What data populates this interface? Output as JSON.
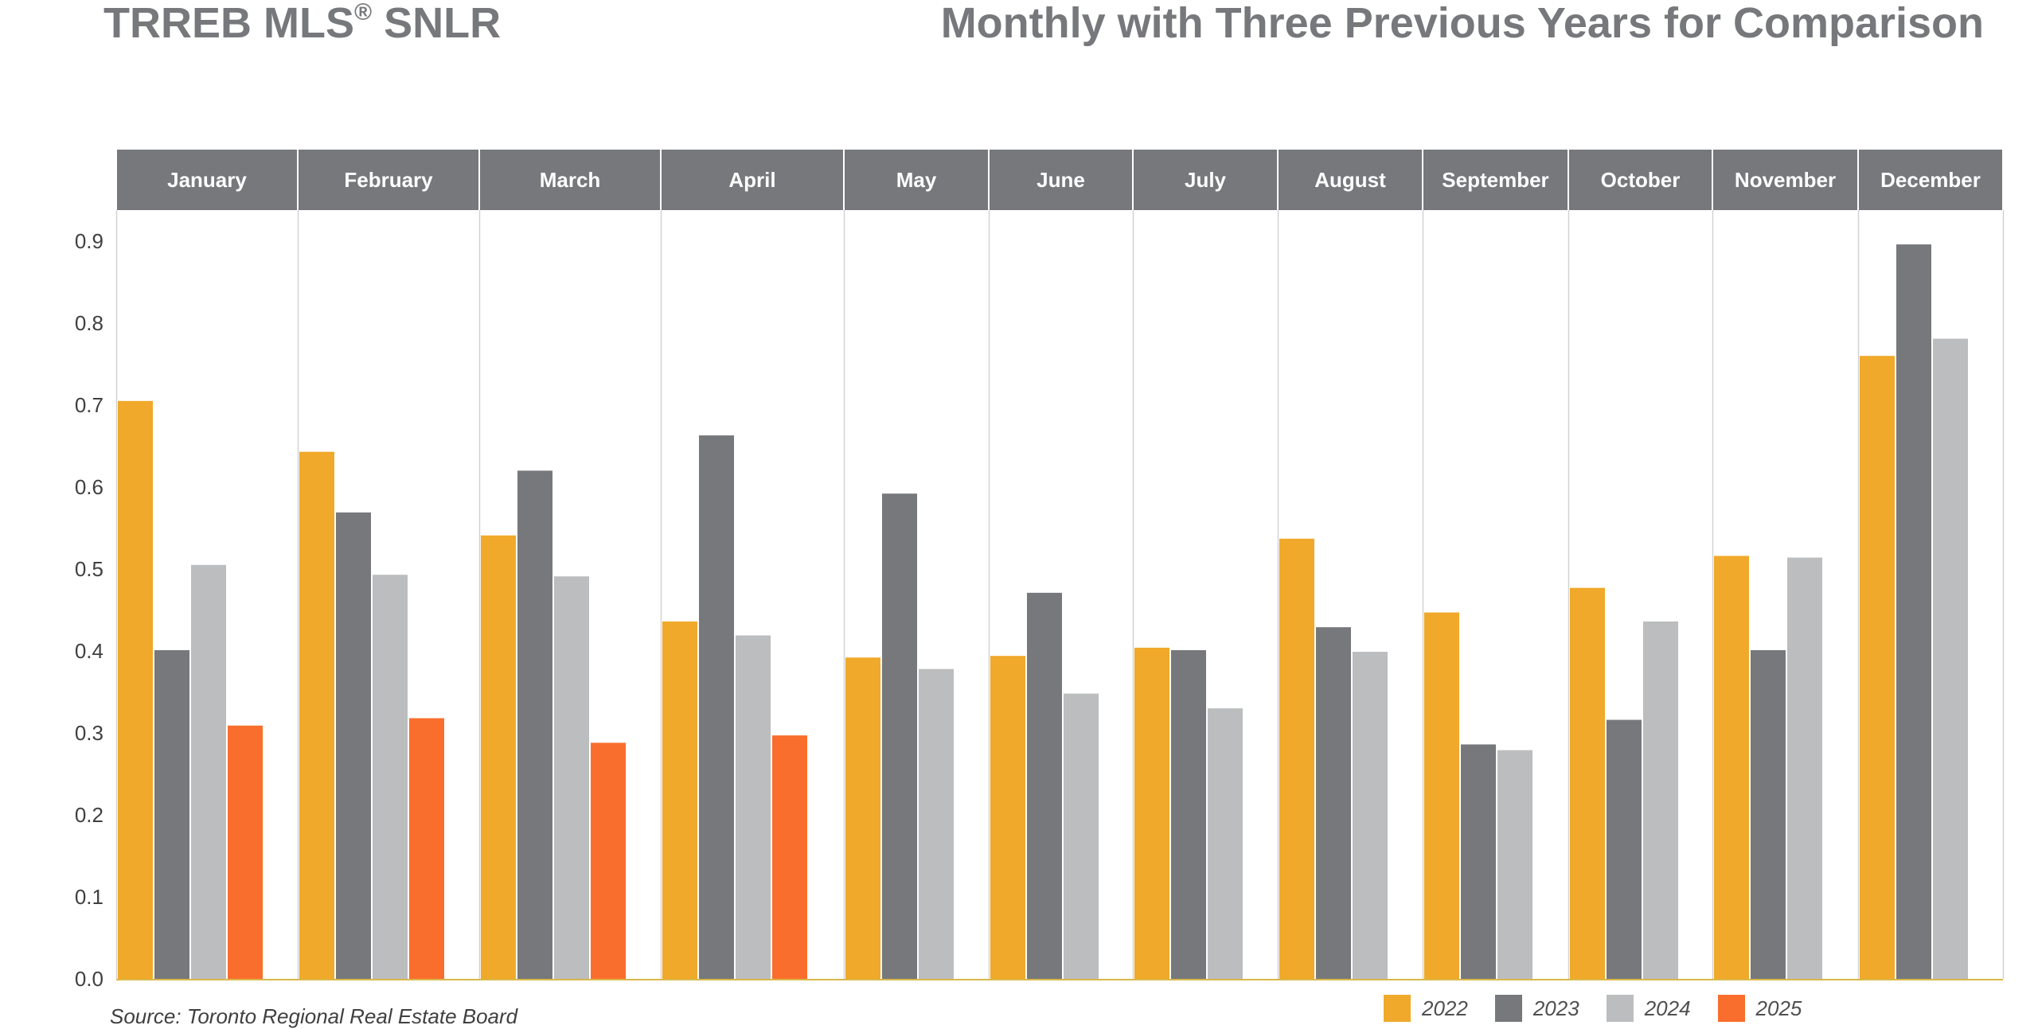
{
  "header": {
    "title_main": "TRREB MLS",
    "title_reg": "®",
    "title_tail": " SNLR",
    "subtitle": "Monthly with Three Previous Years for Comparison"
  },
  "footer": {
    "source": "Source: Toronto Regional Real Estate Board"
  },
  "colors": {
    "2022": "#F0A92A",
    "2023": "#76787B",
    "2024": "#BCBDBE",
    "2025": "#FA6E2D",
    "month_header_bg": "#76787B",
    "month_header_text": "#FFFFFF"
  },
  "chart_data": {
    "type": "bar",
    "title": "",
    "xlabel": "",
    "ylabel": "",
    "ylim": [
      0,
      0.9
    ],
    "yticks": [
      "0.0",
      "0.1",
      "0.2",
      "0.3",
      "0.4",
      "0.5",
      "0.6",
      "0.7",
      "0.8",
      "0.9"
    ],
    "grid": false,
    "legend": "bottom-right",
    "categories": [
      "January",
      "February",
      "March",
      "April",
      "May",
      "June",
      "July",
      "August",
      "September",
      "October",
      "November",
      "December"
    ],
    "series": [
      {
        "name": "2022",
        "values": [
          0.705,
          0.643,
          0.541,
          0.436,
          0.392,
          0.394,
          0.404,
          0.537,
          0.447,
          0.477,
          0.516,
          0.76
        ]
      },
      {
        "name": "2023",
        "values": [
          0.401,
          0.569,
          0.62,
          0.663,
          0.592,
          0.471,
          0.401,
          0.429,
          0.286,
          0.316,
          0.401,
          0.896
        ]
      },
      {
        "name": "2024",
        "values": [
          0.505,
          0.493,
          0.491,
          0.419,
          0.378,
          0.348,
          0.33,
          0.399,
          0.279,
          0.436,
          0.514,
          0.781
        ]
      },
      {
        "name": "2025",
        "values": [
          0.309,
          0.318,
          0.288,
          0.297,
          null,
          null,
          null,
          null,
          null,
          null,
          null,
          null
        ]
      }
    ]
  }
}
